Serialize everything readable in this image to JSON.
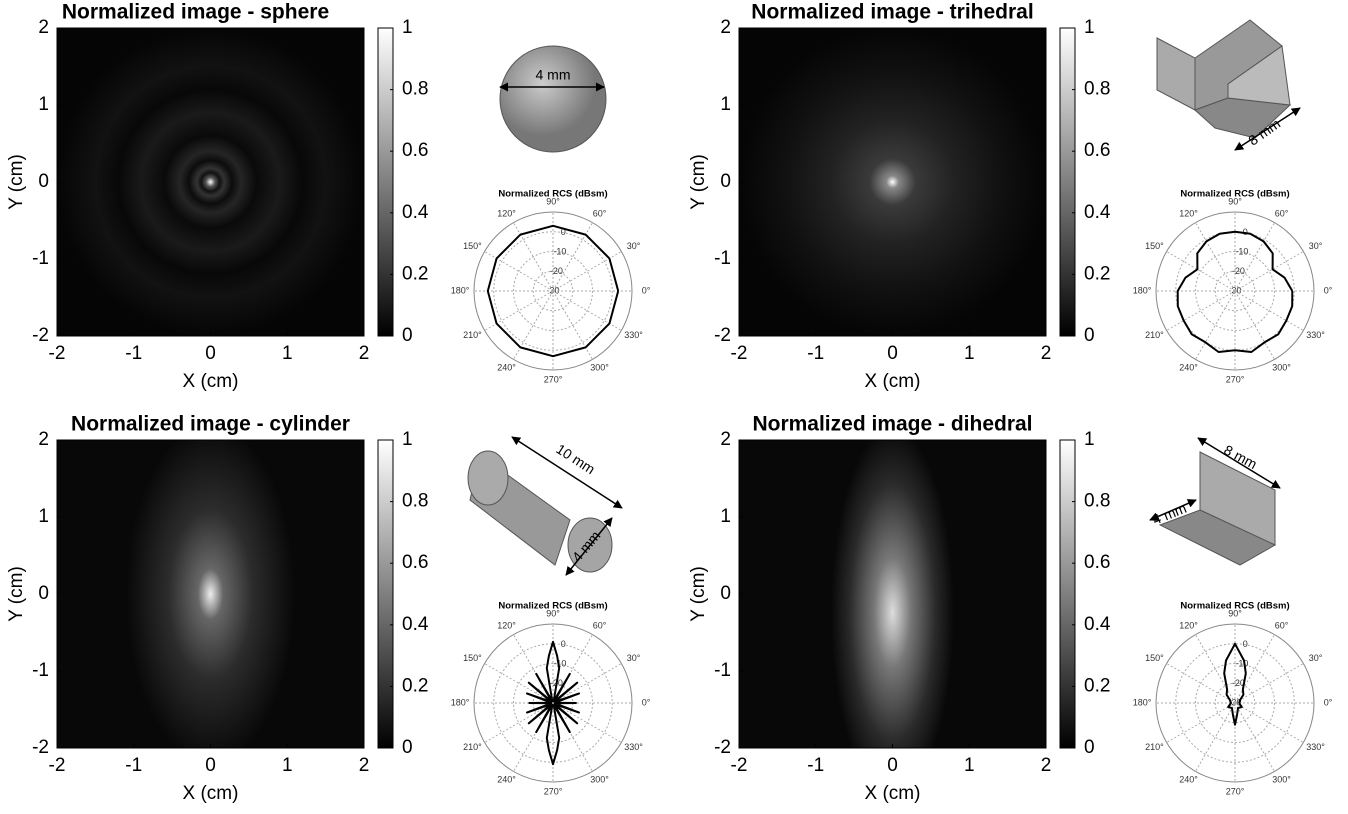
{
  "chart_data": [
    {
      "type": "heatmap",
      "title": "Normalized image - sphere",
      "xlabel": "X (cm)",
      "ylabel": "Y (cm)",
      "xlim": [
        -2,
        2
      ],
      "ylim": [
        -2,
        2
      ],
      "xticks": [
        -2,
        -1,
        0,
        1,
        2
      ],
      "yticks": [
        -2,
        -1,
        0,
        1,
        2
      ],
      "clim": [
        0,
        1
      ],
      "cticks": [
        0,
        0.2,
        0.4,
        0.6,
        0.8,
        1
      ]
    },
    {
      "type": "polar",
      "title": "Normalized RCS (dBsm)",
      "rlim": [
        -30,
        10
      ],
      "rticks": [
        -30,
        -20,
        -10,
        0
      ],
      "color": "#000000",
      "thetaticks": [
        {
          "value": 0,
          "label": "0°"
        },
        {
          "value": 30,
          "label": "30°"
        },
        {
          "value": 60,
          "label": "60°"
        },
        {
          "value": 90,
          "label": "90°"
        },
        {
          "value": 120,
          "label": "120°"
        },
        {
          "value": 150,
          "label": "150°"
        },
        {
          "value": 180,
          "label": "180°"
        },
        {
          "value": 210,
          "label": "210°"
        },
        {
          "value": 240,
          "label": "240°"
        },
        {
          "value": 270,
          "label": "270°"
        },
        {
          "value": 300,
          "label": "300°"
        },
        {
          "value": 330,
          "label": "330°"
        }
      ],
      "theta": [
        0,
        30,
        60,
        90,
        120,
        150,
        180,
        210,
        240,
        270,
        300,
        330,
        360
      ],
      "r": [
        3,
        3,
        3,
        3,
        3,
        3,
        3,
        3,
        3,
        3,
        3,
        3,
        3
      ]
    },
    {
      "type": "heatmap",
      "title": "Normalized image - trihedral",
      "xlabel": "X (cm)",
      "ylabel": "Y (cm)",
      "xlim": [
        -2,
        2
      ],
      "ylim": [
        -2,
        2
      ],
      "xticks": [
        -2,
        -1,
        0,
        1,
        2
      ],
      "yticks": [
        -2,
        -1,
        0,
        1,
        2
      ],
      "clim": [
        0,
        1
      ],
      "cticks": [
        0,
        0.2,
        0.4,
        0.6,
        0.8,
        1
      ]
    },
    {
      "type": "polar",
      "title": "Normalized RCS (dBsm)",
      "rlim": [
        -30,
        10
      ],
      "rticks": [
        -30,
        -20,
        -10,
        0
      ],
      "color": "#000000",
      "thetaticks": [
        {
          "value": 0,
          "label": "0°"
        },
        {
          "value": 30,
          "label": "30°"
        },
        {
          "value": 60,
          "label": "60°"
        },
        {
          "value": 90,
          "label": "90°"
        },
        {
          "value": 120,
          "label": "120°"
        },
        {
          "value": 150,
          "label": "150°"
        },
        {
          "value": 180,
          "label": "180°"
        },
        {
          "value": 210,
          "label": "210°"
        },
        {
          "value": 240,
          "label": "240°"
        },
        {
          "value": 270,
          "label": "270°"
        },
        {
          "value": 300,
          "label": "300°"
        },
        {
          "value": 330,
          "label": "330°"
        }
      ],
      "theta": [
        0,
        15,
        30,
        45,
        60,
        75,
        90,
        105,
        120,
        135,
        150,
        165,
        180,
        195,
        210,
        225,
        240,
        255,
        270,
        285,
        300,
        315,
        330,
        345,
        360
      ],
      "r": [
        -1,
        -4,
        -8,
        -3,
        -1,
        0,
        0,
        0,
        -1,
        -3,
        -8,
        -4,
        -1,
        0,
        0,
        1,
        0,
        2,
        0,
        2,
        0,
        1,
        0,
        0,
        -1
      ]
    },
    {
      "type": "heatmap",
      "title": "Normalized image - cylinder",
      "xlabel": "X (cm)",
      "ylabel": "Y (cm)",
      "xlim": [
        -2,
        2
      ],
      "ylim": [
        -2,
        2
      ],
      "xticks": [
        -2,
        -1,
        0,
        1,
        2
      ],
      "yticks": [
        -2,
        -1,
        0,
        1,
        2
      ],
      "clim": [
        0,
        1
      ],
      "cticks": [
        0,
        0.2,
        0.4,
        0.6,
        0.8,
        1
      ]
    },
    {
      "type": "polar",
      "title": "Normalized RCS (dBsm)",
      "rlim": [
        -30,
        10
      ],
      "rticks": [
        -30,
        -20,
        -10,
        0
      ],
      "color": "#000000",
      "thetaticks": [
        {
          "value": 0,
          "label": "0°"
        },
        {
          "value": 30,
          "label": "30°"
        },
        {
          "value": 60,
          "label": "60°"
        },
        {
          "value": 90,
          "label": "90°"
        },
        {
          "value": 120,
          "label": "120°"
        },
        {
          "value": 150,
          "label": "150°"
        },
        {
          "value": 180,
          "label": "180°"
        },
        {
          "value": 210,
          "label": "210°"
        },
        {
          "value": 240,
          "label": "240°"
        },
        {
          "value": 270,
          "label": "270°"
        },
        {
          "value": 300,
          "label": "300°"
        },
        {
          "value": 330,
          "label": "330°"
        }
      ],
      "theta": [
        0,
        10,
        20,
        30,
        40,
        50,
        60,
        70,
        80,
        85,
        90,
        95,
        100,
        110,
        120,
        130,
        140,
        150,
        160,
        170,
        180,
        190,
        200,
        210,
        220,
        230,
        240,
        250,
        260,
        265,
        270,
        275,
        280,
        290,
        300,
        310,
        320,
        330,
        340,
        350,
        360
      ],
      "r": [
        -18,
        -29,
        -16,
        -29,
        -14,
        -29,
        -13,
        -29,
        -12,
        -6,
        1,
        -6,
        -12,
        -29,
        -13,
        -29,
        -14,
        -29,
        -16,
        -29,
        -18,
        -29,
        -16,
        -29,
        -14,
        -29,
        -13,
        -29,
        -12,
        -6,
        1,
        -6,
        -12,
        -29,
        -13,
        -29,
        -14,
        -29,
        -16,
        -29,
        -18
      ]
    },
    {
      "type": "heatmap",
      "title": "Normalized image - dihedral",
      "xlabel": "X (cm)",
      "ylabel": "Y (cm)",
      "xlim": [
        -2,
        2
      ],
      "ylim": [
        -2,
        2
      ],
      "xticks": [
        -2,
        -1,
        0,
        1,
        2
      ],
      "yticks": [
        -2,
        -1,
        0,
        1,
        2
      ],
      "clim": [
        0,
        1
      ],
      "cticks": [
        0,
        0.2,
        0.4,
        0.6,
        0.8,
        1
      ]
    },
    {
      "type": "polar",
      "title": "Normalized RCS (dBsm)",
      "rlim": [
        -30,
        10
      ],
      "rticks": [
        -30,
        -20,
        -10,
        0
      ],
      "color": "#000000",
      "thetaticks": [
        {
          "value": 0,
          "label": "0°"
        },
        {
          "value": 30,
          "label": "30°"
        },
        {
          "value": 60,
          "label": "60°"
        },
        {
          "value": 90,
          "label": "90°"
        },
        {
          "value": 120,
          "label": "120°"
        },
        {
          "value": 150,
          "label": "150°"
        },
        {
          "value": 180,
          "label": "180°"
        },
        {
          "value": 210,
          "label": "210°"
        },
        {
          "value": 240,
          "label": "240°"
        },
        {
          "value": 270,
          "label": "270°"
        },
        {
          "value": 300,
          "label": "300°"
        },
        {
          "value": 330,
          "label": "330°"
        }
      ],
      "theta": [
        0,
        30,
        45,
        60,
        70,
        78,
        90,
        102,
        110,
        120,
        135,
        150,
        180,
        210,
        240,
        260,
        270,
        280,
        300,
        330,
        360
      ],
      "r": [
        -28,
        -27,
        -24,
        -22,
        -14,
        -8,
        0,
        -8,
        -14,
        -22,
        -24,
        -27,
        -28,
        -26,
        -27,
        -24,
        -19,
        -24,
        -27,
        -26,
        -28
      ]
    }
  ],
  "shapes": [
    {
      "labels": [
        "4 mm"
      ]
    },
    {
      "labels": [
        "8 mm"
      ]
    },
    {
      "labels": [
        "10 mm",
        "4 mm"
      ]
    },
    {
      "labels": [
        "8 mm",
        "4 mm"
      ]
    }
  ]
}
